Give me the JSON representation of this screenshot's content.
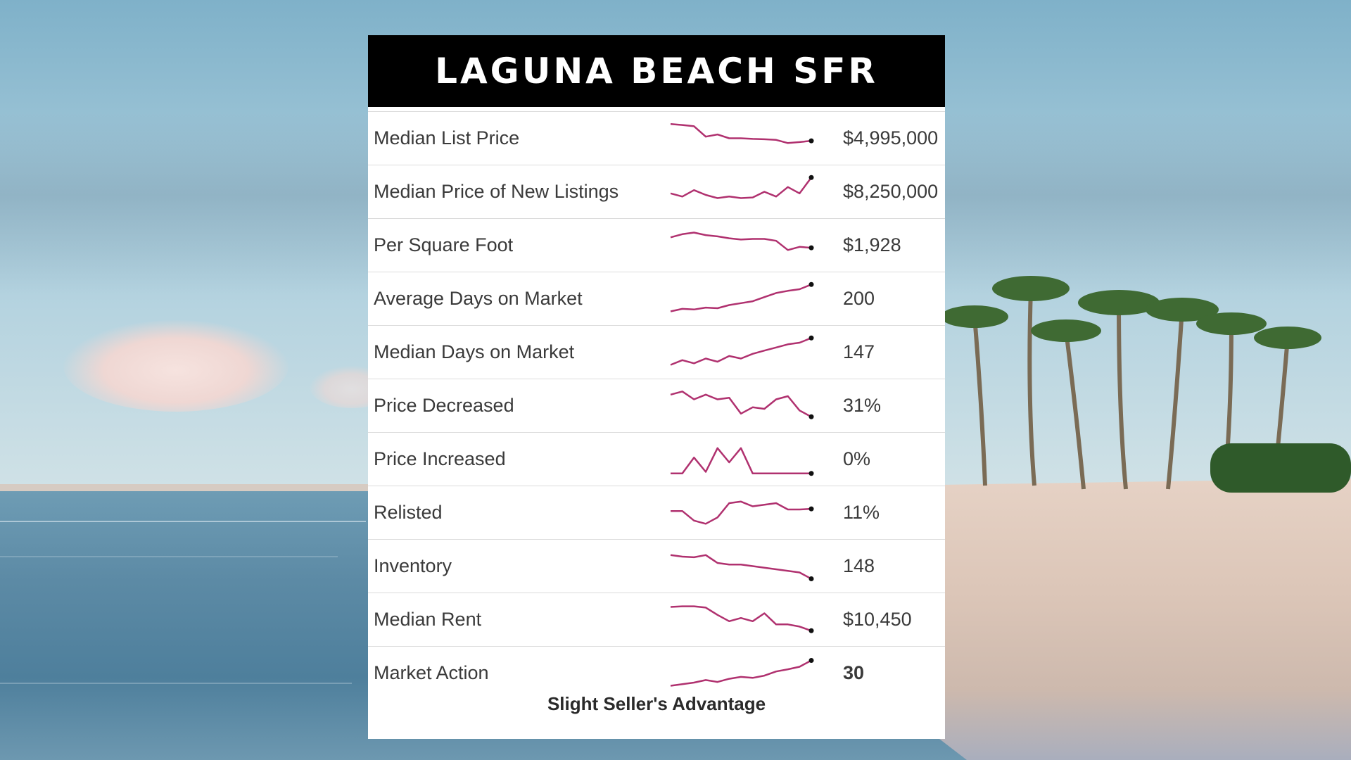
{
  "title": "LAGUNA BEACH SFR",
  "metrics": [
    {
      "label": "Median List Price",
      "value": "$4,995,000",
      "bold": false,
      "trend": [
        0.95,
        0.92,
        0.88,
        0.55,
        0.62,
        0.5,
        0.5,
        0.48,
        0.47,
        0.45,
        0.35,
        0.38,
        0.42
      ]
    },
    {
      "label": "Median Price of New Listings",
      "value": "$8,250,000",
      "bold": false,
      "trend": [
        0.45,
        0.35,
        0.55,
        0.4,
        0.3,
        0.35,
        0.3,
        0.32,
        0.5,
        0.35,
        0.65,
        0.45,
        0.95
      ]
    },
    {
      "label": "Per Square Foot",
      "value": "$1,928",
      "bold": false,
      "trend": [
        0.75,
        0.85,
        0.9,
        0.82,
        0.78,
        0.72,
        0.68,
        0.7,
        0.7,
        0.64,
        0.35,
        0.45,
        0.42
      ]
    },
    {
      "label": "Average Days on Market",
      "value": "200",
      "bold": false,
      "trend": [
        0.1,
        0.18,
        0.16,
        0.22,
        0.2,
        0.3,
        0.36,
        0.42,
        0.55,
        0.68,
        0.75,
        0.8,
        0.95
      ]
    },
    {
      "label": "Median Days on Market",
      "value": "147",
      "bold": false,
      "trend": [
        0.1,
        0.25,
        0.15,
        0.3,
        0.2,
        0.38,
        0.3,
        0.45,
        0.55,
        0.65,
        0.75,
        0.8,
        0.95
      ]
    },
    {
      "label": "Price Decreased",
      "value": "31%",
      "bold": false,
      "trend": [
        0.85,
        0.95,
        0.7,
        0.85,
        0.7,
        0.75,
        0.25,
        0.45,
        0.4,
        0.7,
        0.8,
        0.35,
        0.15
      ]
    },
    {
      "label": "Price Increased",
      "value": "0%",
      "bold": false,
      "trend": [
        0.05,
        0.05,
        0.55,
        0.1,
        0.85,
        0.4,
        0.85,
        0.05,
        0.05,
        0.05,
        0.05,
        0.05,
        0.05
      ]
    },
    {
      "label": "Relisted",
      "value": "11%",
      "bold": false,
      "trend": [
        0.55,
        0.55,
        0.25,
        0.15,
        0.35,
        0.8,
        0.85,
        0.7,
        0.75,
        0.8,
        0.6,
        0.6,
        0.62
      ]
    },
    {
      "label": "Inventory",
      "value": "148",
      "bold": false,
      "trend": [
        0.85,
        0.8,
        0.78,
        0.85,
        0.6,
        0.55,
        0.55,
        0.5,
        0.45,
        0.4,
        0.35,
        0.3,
        0.1
      ]
    },
    {
      "label": "Median Rent",
      "value": "$10,450",
      "bold": false,
      "trend": [
        0.9,
        0.92,
        0.92,
        0.88,
        0.65,
        0.45,
        0.55,
        0.45,
        0.7,
        0.35,
        0.35,
        0.28,
        0.15
      ]
    },
    {
      "label": "Market Action",
      "value": "30",
      "bold": true,
      "trend": [
        0.1,
        0.15,
        0.2,
        0.28,
        0.22,
        0.32,
        0.38,
        0.35,
        0.42,
        0.55,
        0.62,
        0.7,
        0.9
      ]
    }
  ],
  "footer": "Slight Seller's Advantage",
  "colors": {
    "spark_line": "#b0316f",
    "spark_end": "#111111",
    "title_bg": "#000000"
  }
}
